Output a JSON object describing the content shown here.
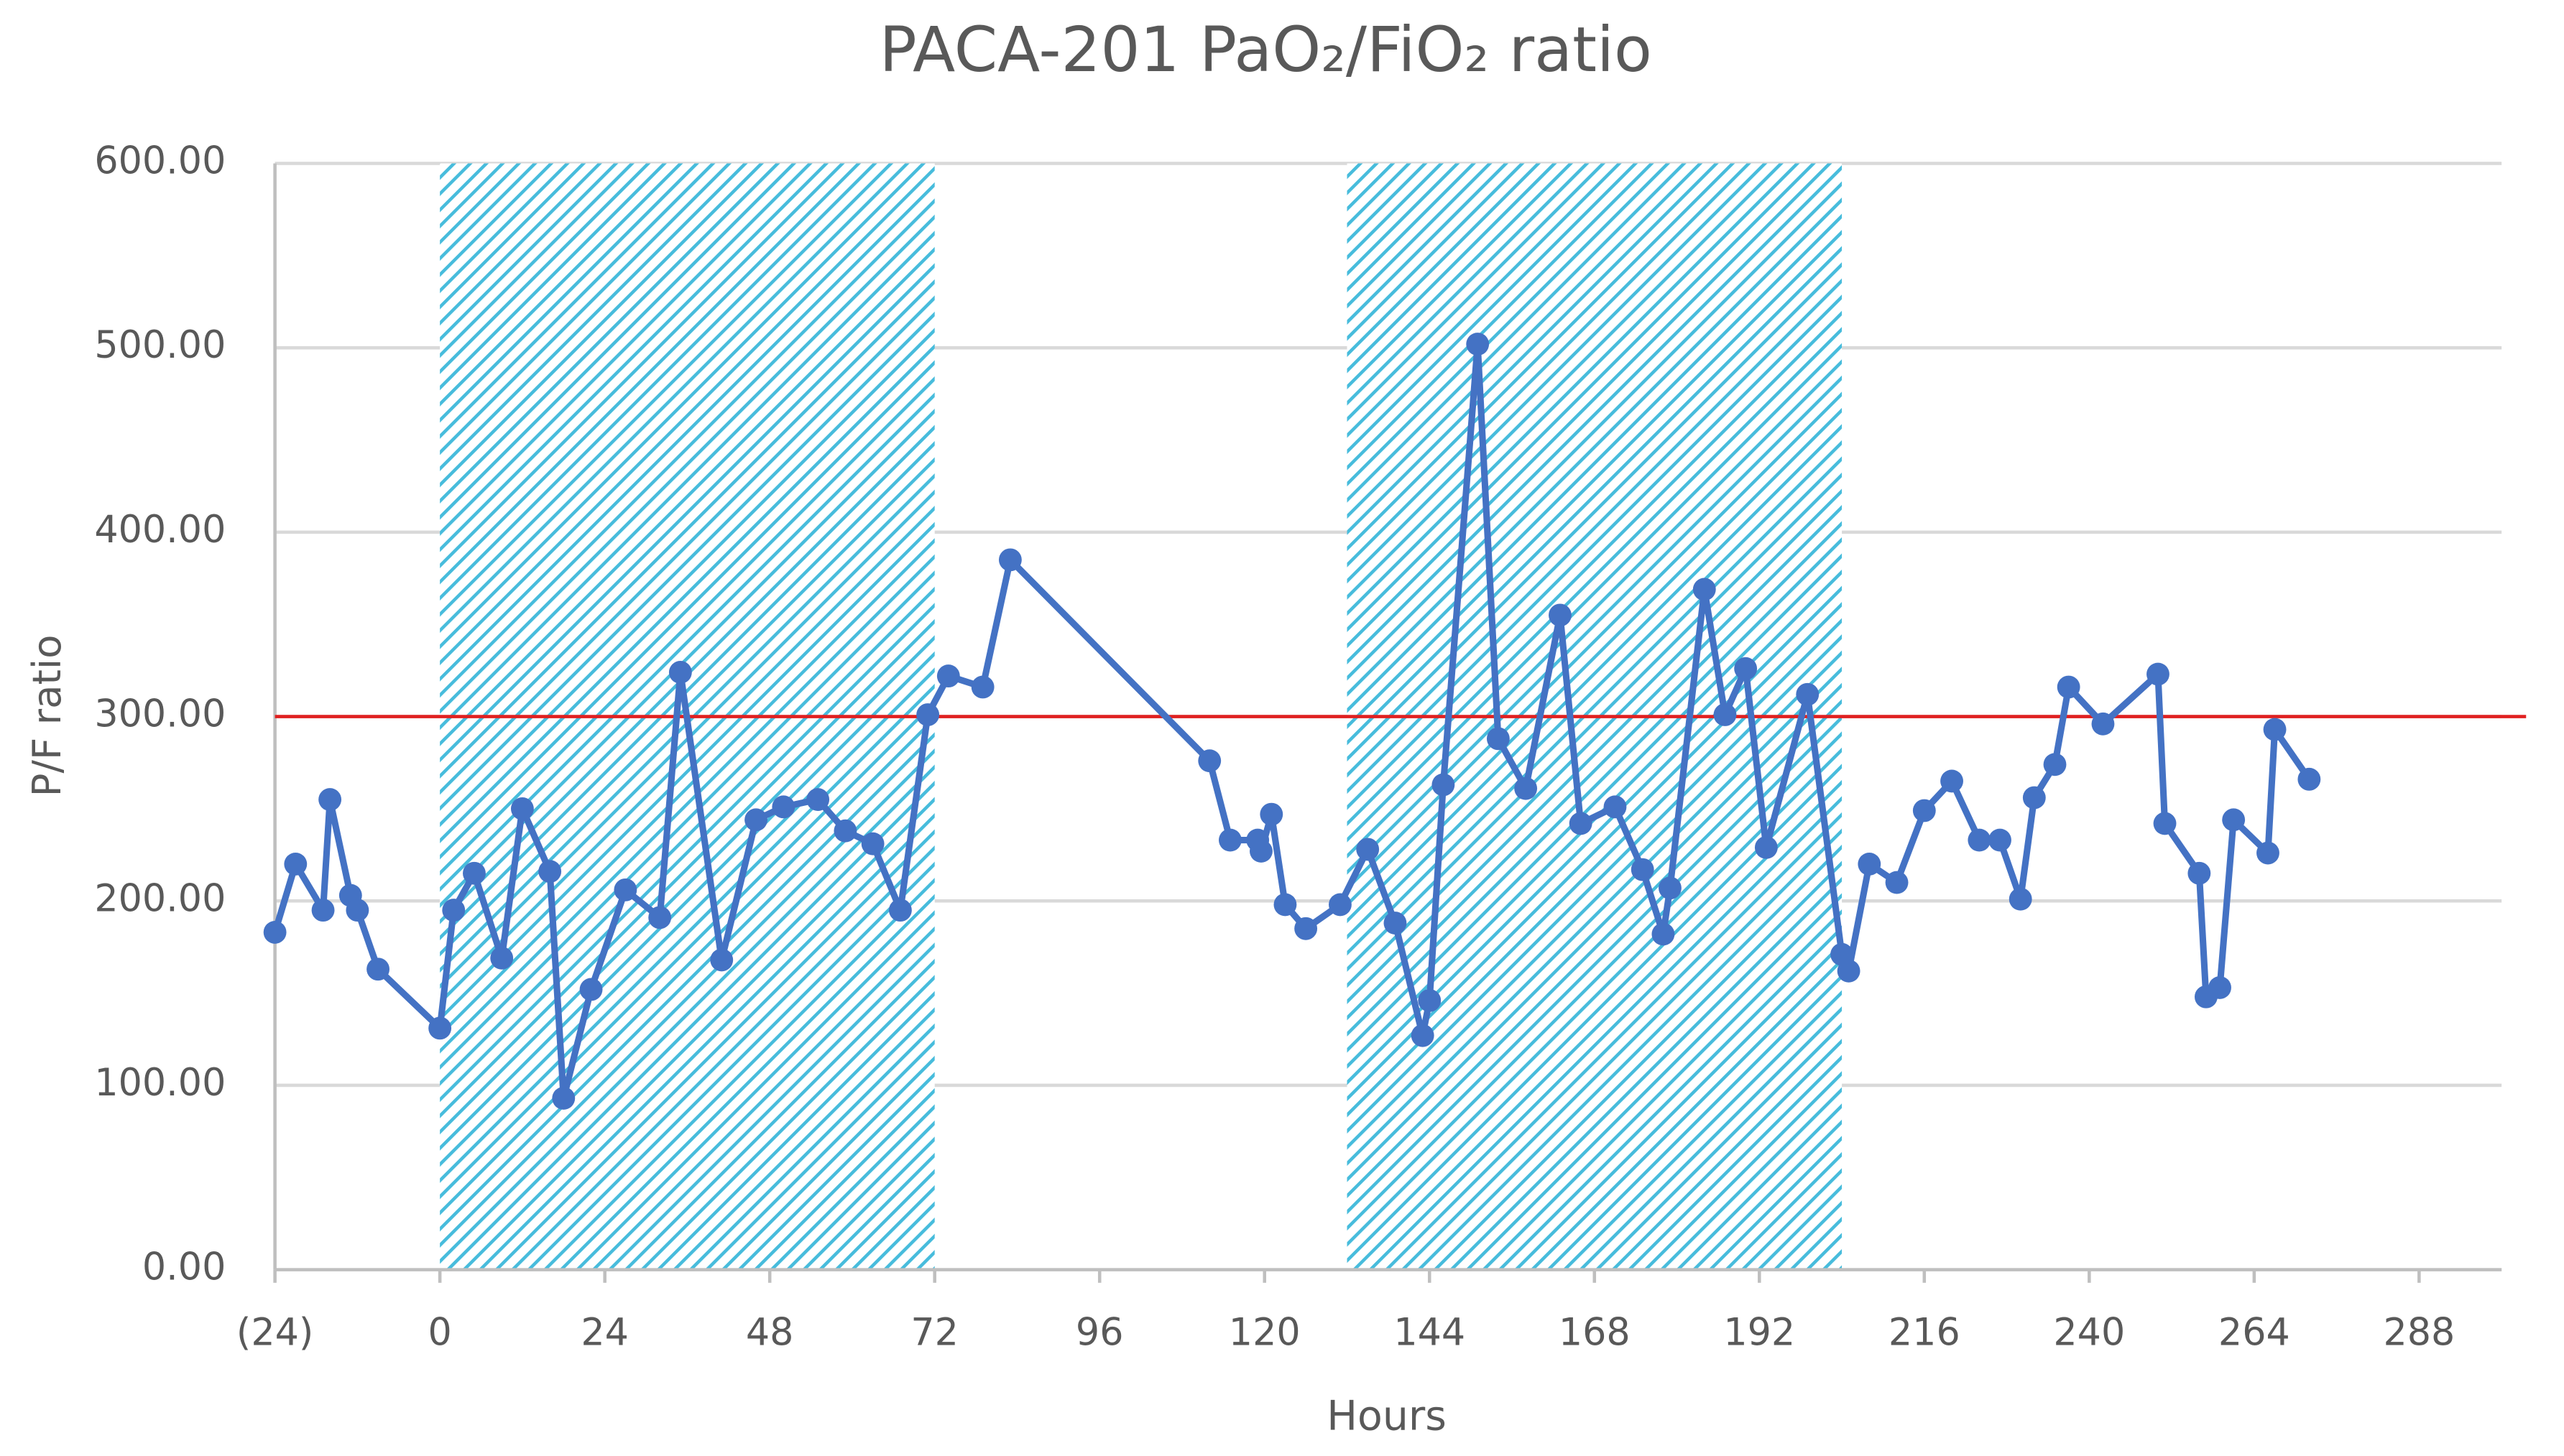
{
  "chart_data": {
    "type": "line",
    "title": "PACA-201 PaO₂/FiO₂ ratio",
    "x_label": "Hours",
    "y_label": "P/F ratio",
    "xlim": [
      -24,
      300
    ],
    "xticks": [
      {
        "value": -24,
        "label": "(24)"
      },
      0,
      24,
      48,
      72,
      96,
      120,
      144,
      168,
      192,
      216,
      240,
      264,
      288
    ],
    "ylim": [
      0,
      600
    ],
    "yticks": [
      {
        "value": 0,
        "label": "0.00"
      },
      {
        "value": 100,
        "label": "100.00"
      },
      {
        "value": 200,
        "label": "200.00"
      },
      {
        "value": 300,
        "label": "300.00"
      },
      {
        "value": 400,
        "label": "400.00"
      },
      {
        "value": 500,
        "label": "500.00"
      },
      {
        "value": 600,
        "label": "600.00"
      }
    ],
    "grid": true,
    "shaded_regions": [
      [
        0,
        72
      ],
      [
        132,
        204
      ]
    ],
    "shade_color": "#47bcdc",
    "reference_line": 300,
    "reference_color": "#e02020",
    "series": [
      {
        "color": "#4472c4",
        "x": [
          -24,
          -21,
          -17,
          -16,
          -13,
          -12,
          -9,
          0,
          2,
          5,
          9,
          12,
          16,
          18,
          22,
          27,
          32,
          35,
          41,
          46,
          50,
          55,
          59,
          63,
          67,
          71,
          74,
          79,
          83,
          112,
          115,
          119,
          119.5,
          121,
          123,
          126,
          131,
          135,
          139,
          143,
          144,
          146,
          151,
          154,
          158,
          163,
          166,
          171,
          175,
          178,
          179,
          184,
          187,
          190,
          193,
          199,
          204,
          205,
          208,
          212,
          216,
          220,
          224,
          227,
          230,
          232,
          235,
          237,
          242,
          250,
          251,
          256,
          257,
          259,
          261,
          266,
          267,
          272
        ],
        "values": [
          183,
          220,
          195,
          255,
          203,
          195,
          163,
          131,
          195,
          215,
          169,
          250,
          216,
          93,
          152,
          206,
          191,
          324,
          168,
          244,
          251,
          255,
          238,
          231,
          195,
          301,
          322,
          316,
          385,
          276,
          233,
          233,
          227,
          247,
          198,
          185,
          198,
          228,
          188,
          127,
          146,
          263,
          502,
          288,
          261,
          355,
          242,
          251,
          217,
          182,
          207,
          369,
          301,
          326,
          229,
          312,
          171,
          162,
          220,
          210,
          249,
          265,
          233,
          233,
          201,
          256,
          274,
          316,
          296,
          323,
          242,
          215,
          148,
          153,
          244,
          226,
          293,
          266
        ]
      }
    ]
  }
}
